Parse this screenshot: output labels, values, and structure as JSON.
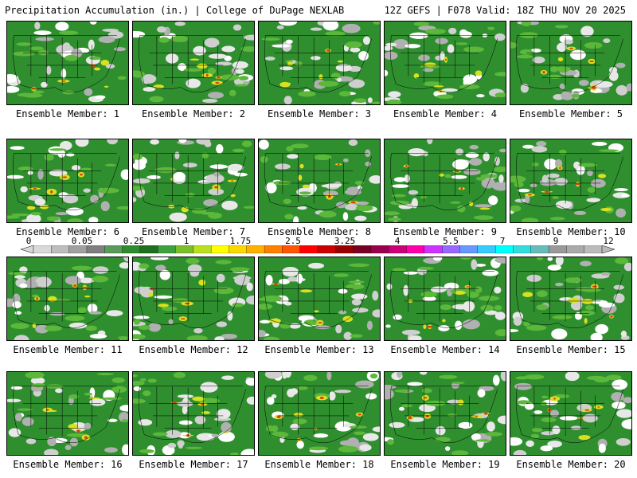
{
  "header": {
    "left": "Precipitation Accumulation (in.) | College of DuPage NEXLAB",
    "right": "12Z GEFS | F078 Valid: 18Z THU NOV 20 2025"
  },
  "label_prefix": "Ensemble Member: ",
  "members": [
    1,
    2,
    3,
    4,
    5,
    6,
    7,
    8,
    9,
    10,
    11,
    12,
    13,
    14,
    15,
    16,
    17,
    18,
    19,
    20
  ],
  "colorbar": {
    "tick_labels": [
      "0",
      "0.05",
      "0.25",
      "1",
      "1.75",
      "2.5",
      "3.25",
      "4",
      "5.5",
      "7",
      "9",
      "12"
    ],
    "colors": [
      "#d9d9d9",
      "#bdbdbd",
      "#a0a0a0",
      "#7f7f7f",
      "#5a9a5a",
      "#2e8b2e",
      "#1f6f1f",
      "#3fa03f",
      "#7bbf2a",
      "#b9e01f",
      "#ffff00",
      "#ffd700",
      "#ffb000",
      "#ff8000",
      "#ff5500",
      "#ff0000",
      "#cc0000",
      "#990000",
      "#770022",
      "#99004d",
      "#cc0077",
      "#ff00aa",
      "#cc33ff",
      "#9966ff",
      "#6699ff",
      "#33ccff",
      "#00ffff",
      "#33dddd",
      "#66bbbb",
      "#999999",
      "#aaaaaa",
      "#bbbbbb"
    ]
  }
}
